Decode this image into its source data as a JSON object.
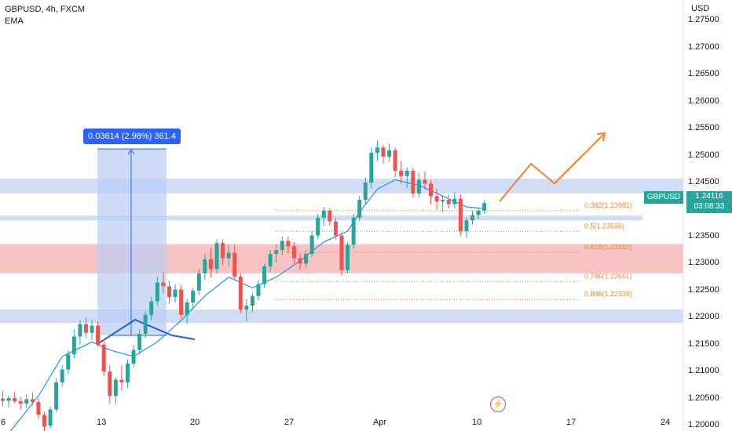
{
  "header": {
    "title": "GBPUSD, 4h, FXCM",
    "indicator": "EMA"
  },
  "axis": {
    "currency": "USD",
    "price_ticks": [
      "1.27500",
      "1.27000",
      "1.26500",
      "1.26000",
      "1.25500",
      "1.25000",
      "1.24500",
      "1.24000",
      "1.23500",
      "1.23000",
      "1.22500",
      "1.22000",
      "1.21500",
      "1.21000",
      "1.20500",
      "1.20000"
    ],
    "time_ticks": [
      "6",
      "13",
      "20",
      "27",
      "Apr",
      "10",
      "17",
      "24"
    ]
  },
  "badge": {
    "symbol": "GBPUSD",
    "price": "1.24116",
    "countdown": "03:08:33"
  },
  "measure": {
    "text": "0.03614 (2.98%) 361.4"
  },
  "fib_levels": [
    {
      "label": "0.382(1.23981)",
      "value": 1.23981
    },
    {
      "label": "0.5(1.23596)",
      "value": 1.23596
    },
    {
      "label": "0.618(1.23210)",
      "value": 1.2321
    },
    {
      "label": "0.786(1.22661)",
      "value": 1.22661
    },
    {
      "label": "0.886(1.22335)",
      "value": 1.22335
    }
  ],
  "zones": [
    {
      "low": 1.243,
      "high": 1.2457,
      "color": "#c9d7f3"
    },
    {
      "low": 1.238,
      "high": 1.2389,
      "color": "#c9d7f3"
    },
    {
      "low": 1.2282,
      "high": 1.2336,
      "color": "#f7b8b8"
    },
    {
      "low": 1.219,
      "high": 1.2215,
      "color": "#c9d7f3"
    }
  ],
  "colors": {
    "up": "#26a69a",
    "down": "#ef5350",
    "ema": "#2196f3",
    "fib": "#f08c2e",
    "projection": "#f07f2e",
    "trend": "#1e60d8"
  },
  "chart_data": {
    "type": "candlestick",
    "title": "GBPUSD, 4h, FXCM",
    "xlabel": "",
    "ylabel": "USD",
    "ylim": [
      1.1993,
      1.2788
    ],
    "x_ticks": [
      "6",
      "13",
      "20",
      "27",
      "Apr",
      "10",
      "17",
      "24"
    ],
    "series": [
      {
        "name": "GBPUSD",
        "values": [
          [
            1.205,
            1.2064,
            1.2036,
            1.2046
          ],
          [
            1.2046,
            1.2056,
            1.2034,
            1.2051
          ],
          [
            1.2051,
            1.2062,
            1.2042,
            1.2045
          ],
          [
            1.2045,
            1.2053,
            1.203,
            1.2041
          ],
          [
            1.2041,
            1.2058,
            1.2032,
            1.2049
          ],
          [
            1.2049,
            1.2061,
            1.2038,
            1.2044
          ],
          [
            1.2044,
            1.205,
            1.2012,
            1.202
          ],
          [
            1.202,
            1.2026,
            1.199,
            1.1998
          ],
          [
            1.2,
            1.2035,
            1.1995,
            1.203
          ],
          [
            1.203,
            1.2088,
            1.2025,
            1.208
          ],
          [
            1.208,
            1.2112,
            1.2072,
            1.2104
          ],
          [
            1.2104,
            1.214,
            1.2095,
            1.2132
          ],
          [
            1.2132,
            1.2178,
            1.2125,
            1.2165
          ],
          [
            1.2165,
            1.2195,
            1.215,
            1.2188
          ],
          [
            1.2188,
            1.22,
            1.2162,
            1.2172
          ],
          [
            1.2172,
            1.2197,
            1.2158,
            1.2185
          ],
          [
            1.2185,
            1.2193,
            1.2146,
            1.215
          ],
          [
            1.215,
            1.216,
            1.2092,
            1.21
          ],
          [
            1.21,
            1.2112,
            1.204,
            1.2055
          ],
          [
            1.2055,
            1.209,
            1.204,
            1.2085
          ],
          [
            1.2085,
            1.2112,
            1.2065,
            1.208
          ],
          [
            1.208,
            1.2122,
            1.207,
            1.2115
          ],
          [
            1.2115,
            1.215,
            1.2108,
            1.214
          ],
          [
            1.214,
            1.2178,
            1.2132,
            1.217
          ],
          [
            1.217,
            1.2212,
            1.2162,
            1.2205
          ],
          [
            1.2205,
            1.2238,
            1.2195,
            1.223
          ],
          [
            1.223,
            1.2275,
            1.2222,
            1.2265
          ],
          [
            1.2265,
            1.2285,
            1.2245,
            1.2258
          ],
          [
            1.2258,
            1.2268,
            1.2225,
            1.2238
          ],
          [
            1.2238,
            1.2262,
            1.2228,
            1.2252
          ],
          [
            1.2252,
            1.226,
            1.2198,
            1.2205
          ],
          [
            1.2205,
            1.2235,
            1.2188,
            1.2228
          ],
          [
            1.2228,
            1.2255,
            1.2215,
            1.225
          ],
          [
            1.225,
            1.229,
            1.2242,
            1.2282
          ],
          [
            1.2282,
            1.2318,
            1.227,
            1.2308
          ],
          [
            1.2308,
            1.233,
            1.2275,
            1.229
          ],
          [
            1.229,
            1.2345,
            1.2282,
            1.2338
          ],
          [
            1.2338,
            1.2345,
            1.2298,
            1.231
          ],
          [
            1.231,
            1.2335,
            1.2295,
            1.232
          ],
          [
            1.232,
            1.2335,
            1.227,
            1.2276
          ],
          [
            1.2276,
            1.2282,
            1.2208,
            1.2215
          ],
          [
            1.2215,
            1.2235,
            1.2193,
            1.2222
          ],
          [
            1.2222,
            1.2245,
            1.221,
            1.224
          ],
          [
            1.224,
            1.227,
            1.2232,
            1.2262
          ],
          [
            1.2262,
            1.23,
            1.2255,
            1.2295
          ],
          [
            1.2295,
            1.2325,
            1.2285,
            1.2318
          ],
          [
            1.2318,
            1.2335,
            1.2302,
            1.2325
          ],
          [
            1.2325,
            1.235,
            1.2315,
            1.2342
          ],
          [
            1.2342,
            1.235,
            1.232,
            1.2332
          ],
          [
            1.2332,
            1.234,
            1.23,
            1.231
          ],
          [
            1.231,
            1.2318,
            1.2288,
            1.23
          ],
          [
            1.23,
            1.2325,
            1.2292,
            1.2318
          ],
          [
            1.2318,
            1.236,
            1.2312,
            1.2352
          ],
          [
            1.2352,
            1.2392,
            1.2345,
            1.2385
          ],
          [
            1.2385,
            1.2405,
            1.237,
            1.2398
          ],
          [
            1.2398,
            1.2402,
            1.237,
            1.2378
          ],
          [
            1.2378,
            1.2385,
            1.2345,
            1.2352
          ],
          [
            1.2352,
            1.2358,
            1.2278,
            1.2288
          ],
          [
            1.2288,
            1.234,
            1.2282,
            1.2335
          ],
          [
            1.2335,
            1.2392,
            1.2328,
            1.2385
          ],
          [
            1.2385,
            1.2425,
            1.2378,
            1.2418
          ],
          [
            1.2418,
            1.246,
            1.241,
            1.245
          ],
          [
            1.245,
            1.2515,
            1.244,
            1.2505
          ],
          [
            1.2505,
            1.2528,
            1.249,
            1.2515
          ],
          [
            1.2515,
            1.252,
            1.2485,
            1.2498
          ],
          [
            1.2498,
            1.2522,
            1.2488,
            1.251
          ],
          [
            1.251,
            1.2515,
            1.246,
            1.2472
          ],
          [
            1.2472,
            1.249,
            1.2448,
            1.2462
          ],
          [
            1.2462,
            1.2478,
            1.244,
            1.2472
          ],
          [
            1.2472,
            1.2478,
            1.2422,
            1.243
          ],
          [
            1.243,
            1.2468,
            1.2422,
            1.2455
          ],
          [
            1.2455,
            1.247,
            1.2438,
            1.2448
          ],
          [
            1.2448,
            1.2455,
            1.241,
            1.2425
          ],
          [
            1.2425,
            1.2438,
            1.24,
            1.2415
          ],
          [
            1.2415,
            1.2425,
            1.2395,
            1.2418
          ],
          [
            1.2418,
            1.2428,
            1.2402,
            1.241
          ],
          [
            1.241,
            1.2432,
            1.2402,
            1.242
          ],
          [
            1.242,
            1.2428,
            1.2352,
            1.236
          ],
          [
            1.236,
            1.2385,
            1.2348,
            1.238
          ],
          [
            1.238,
            1.2398,
            1.2372,
            1.239
          ],
          [
            1.239,
            1.2402,
            1.2382,
            1.2398
          ],
          [
            1.2398,
            1.2418,
            1.2392,
            1.2412
          ]
        ]
      },
      {
        "name": "EMA",
        "values": [
          [
            0,
            1.1972
          ],
          [
            6,
            1.2055
          ],
          [
            10,
            1.2128
          ],
          [
            15,
            1.2155
          ],
          [
            18,
            1.214
          ],
          [
            22,
            1.2128
          ],
          [
            26,
            1.2155
          ],
          [
            30,
            1.2195
          ],
          [
            34,
            1.224
          ],
          [
            38,
            1.2275
          ],
          [
            42,
            1.2255
          ],
          [
            46,
            1.2275
          ],
          [
            50,
            1.2305
          ],
          [
            54,
            1.234
          ],
          [
            58,
            1.236
          ],
          [
            60,
            1.2395
          ],
          [
            63,
            1.2438
          ],
          [
            66,
            1.2455
          ],
          [
            70,
            1.2445
          ],
          [
            74,
            1.2425
          ],
          [
            78,
            1.2405
          ],
          [
            81,
            1.2402
          ]
        ]
      }
    ]
  }
}
